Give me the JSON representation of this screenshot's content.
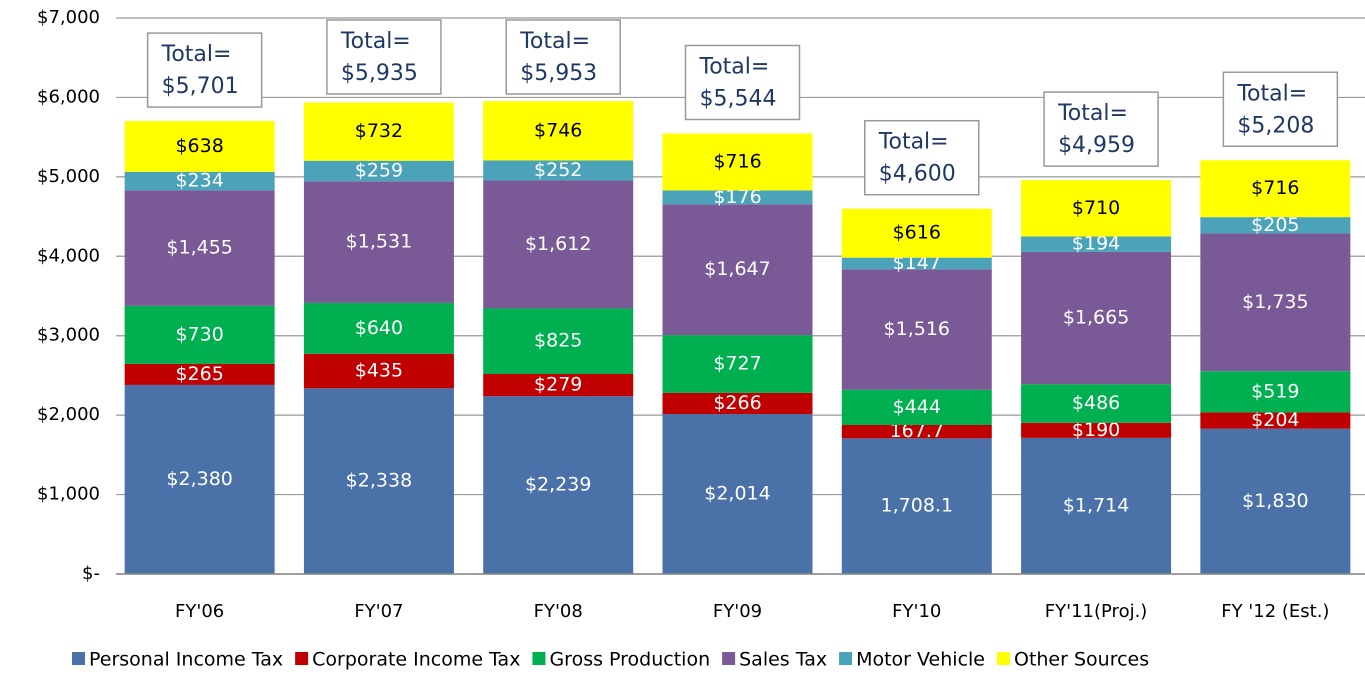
{
  "chart_data": {
    "type": "stacked_bar",
    "categories": [
      "FY'06",
      "FY'07",
      "FY'08",
      "FY'09",
      "FY'10",
      "FY'11(Proj.)",
      "FY '12 (Est.)"
    ],
    "series": [
      {
        "name": "Personal Income Tax",
        "color": "#4a72a8",
        "values": [
          2380,
          2338,
          2239,
          2014,
          1708.1,
          1714,
          1830
        ],
        "value_labels": [
          "$2,380",
          "$2,338",
          "$2,239",
          "$2,014",
          "1,708.1",
          "$1,714",
          "$1,830"
        ]
      },
      {
        "name": "Corporate Income Tax",
        "color": "#c00000",
        "values": [
          265,
          435,
          279,
          266,
          167.7,
          190,
          204
        ],
        "value_labels": [
          "$265",
          "$435",
          "$279",
          "$266",
          "167.7",
          "$190",
          "$204"
        ]
      },
      {
        "name": "Gross Production",
        "color": "#00b050",
        "values": [
          730,
          640,
          825,
          727,
          444,
          486,
          519
        ],
        "value_labels": [
          "$730",
          "$640",
          "$825",
          "$727",
          "$444",
          "$486",
          "$519"
        ]
      },
      {
        "name": "Sales Tax",
        "color": "#7a5a96",
        "values": [
          1455,
          1531,
          1612,
          1647,
          1516,
          1665,
          1735
        ],
        "value_labels": [
          "$1,455",
          "$1,531",
          "$1,612",
          "$1,647",
          "$1,516",
          "$1,665",
          "$1,735"
        ]
      },
      {
        "name": "Motor Vehicle",
        "color": "#4ba3b9",
        "values": [
          234,
          259,
          252,
          176,
          147,
          194,
          205
        ],
        "value_labels": [
          "$234",
          "$259",
          "$252",
          "$176",
          "$147",
          "$194",
          "$205"
        ]
      },
      {
        "name": "Other Sources",
        "color": "#ffff00",
        "values": [
          638,
          732,
          746,
          716,
          616,
          710,
          716
        ],
        "value_labels": [
          "$638",
          "$732",
          "$746",
          "$716",
          "$616",
          "$710",
          "$716"
        ]
      }
    ],
    "total_prefix": "Total=",
    "totals": [
      5701,
      5935,
      5953,
      5544,
      4600,
      4959,
      5208
    ],
    "total_labels": [
      "$5,701",
      "$5,935",
      "$5,953",
      "$5,544",
      "$4,600",
      "$4,959",
      "$5,208"
    ],
    "ylim": [
      0,
      7000
    ],
    "yticks": [
      {
        "value": 0,
        "label": "$-"
      },
      {
        "value": 1000,
        "label": "$1,000"
      },
      {
        "value": 2000,
        "label": "$2,000"
      },
      {
        "value": 3000,
        "label": "$3,000"
      },
      {
        "value": 4000,
        "label": "$4,000"
      },
      {
        "value": 5000,
        "label": "$5,000"
      },
      {
        "value": 6000,
        "label": "$6,000"
      },
      {
        "value": 7000,
        "label": "$7,000"
      }
    ],
    "grid": true,
    "legend": "bottom"
  }
}
